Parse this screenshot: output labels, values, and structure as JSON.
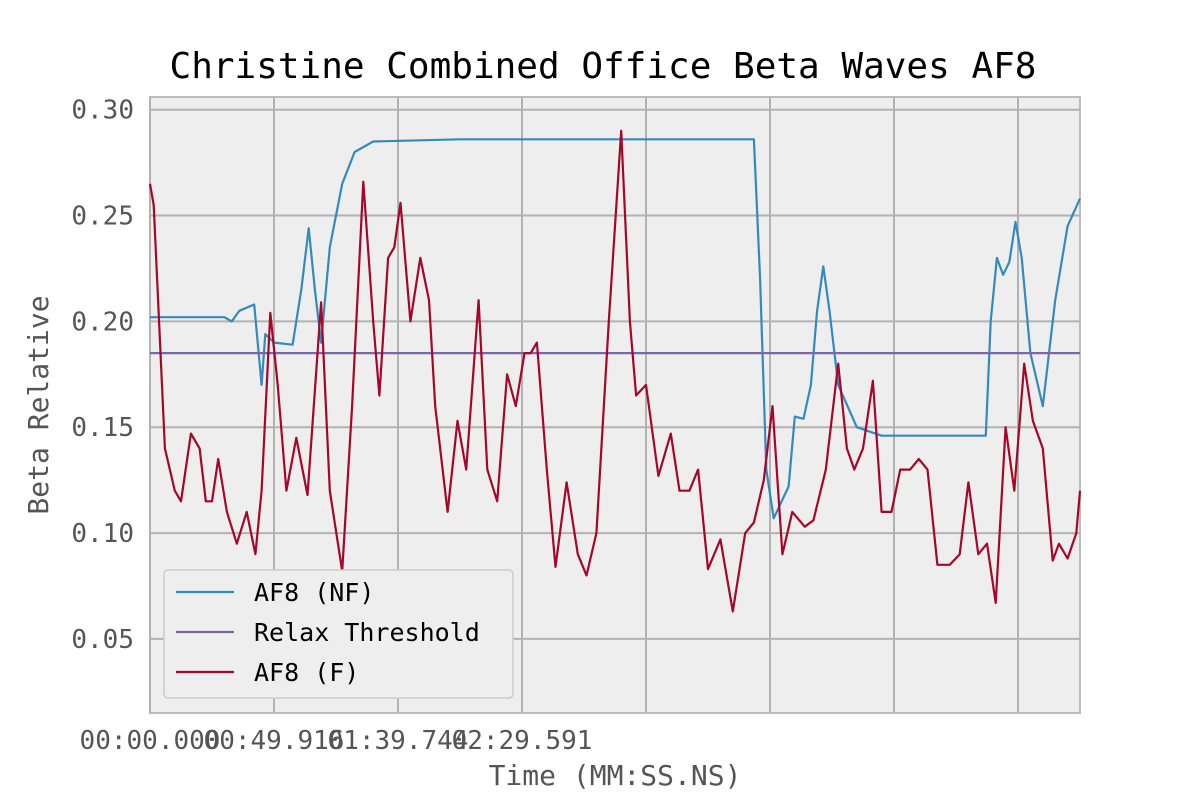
{
  "chart_data": {
    "type": "line",
    "title": "Christine Combined Office Beta Waves AF8",
    "xlabel": "Time (MM:SS.NS)",
    "ylabel": "Beta Relative",
    "xlim": [
      0,
      7.5
    ],
    "ylim": [
      0.015,
      0.306
    ],
    "yticks": [
      0.05,
      0.1,
      0.15,
      0.2,
      0.25,
      0.3
    ],
    "ytick_labels": [
      "0.05",
      "0.10",
      "0.15",
      "0.20",
      "0.25",
      "0.30"
    ],
    "xtick_labels": [
      "00:00.000",
      "00:49.916",
      "01:39.744",
      "02:29.591"
    ],
    "xtick_positions": [
      0,
      1,
      2,
      3
    ],
    "grid_x": [
      0,
      1,
      2,
      3,
      4,
      5,
      6,
      7
    ],
    "grid": true,
    "legend_position": "lower-left",
    "background": "#eeeeee",
    "series": [
      {
        "name": "AF8 (NF)",
        "color": "#348abd",
        "points": [
          [
            0,
            0.202
          ],
          [
            0.6,
            0.202
          ],
          [
            0.66,
            0.2
          ],
          [
            0.72,
            0.205
          ],
          [
            0.84,
            0.208
          ],
          [
            0.9,
            0.17
          ],
          [
            0.93,
            0.194
          ],
          [
            1.0,
            0.19
          ],
          [
            1.15,
            0.189
          ],
          [
            1.22,
            0.215
          ],
          [
            1.28,
            0.244
          ],
          [
            1.33,
            0.215
          ],
          [
            1.38,
            0.19
          ],
          [
            1.45,
            0.235
          ],
          [
            1.55,
            0.265
          ],
          [
            1.65,
            0.28
          ],
          [
            1.8,
            0.285
          ],
          [
            2.5,
            0.286
          ],
          [
            4.0,
            0.286
          ],
          [
            4.87,
            0.286
          ],
          [
            4.92,
            0.22
          ],
          [
            4.97,
            0.13
          ],
          [
            5.03,
            0.107
          ],
          [
            5.15,
            0.122
          ],
          [
            5.2,
            0.155
          ],
          [
            5.27,
            0.154
          ],
          [
            5.33,
            0.17
          ],
          [
            5.38,
            0.205
          ],
          [
            5.43,
            0.226
          ],
          [
            5.48,
            0.205
          ],
          [
            5.55,
            0.17
          ],
          [
            5.7,
            0.15
          ],
          [
            5.9,
            0.146
          ],
          [
            6.3,
            0.146
          ],
          [
            6.74,
            0.146
          ],
          [
            6.78,
            0.2
          ],
          [
            6.83,
            0.23
          ],
          [
            6.88,
            0.222
          ],
          [
            6.93,
            0.228
          ],
          [
            6.98,
            0.247
          ],
          [
            7.03,
            0.23
          ],
          [
            7.1,
            0.185
          ],
          [
            7.2,
            0.16
          ],
          [
            7.3,
            0.21
          ],
          [
            7.4,
            0.245
          ],
          [
            7.5,
            0.258
          ]
        ]
      },
      {
        "name": "Relax Threshold",
        "color": "#7a68a6",
        "points": [
          [
            0,
            0.185
          ],
          [
            7.5,
            0.185
          ]
        ]
      },
      {
        "name": "AF8 (F)",
        "color": "#a60628",
        "points": [
          [
            0,
            0.265
          ],
          [
            0.03,
            0.255
          ],
          [
            0.12,
            0.14
          ],
          [
            0.2,
            0.12
          ],
          [
            0.25,
            0.115
          ],
          [
            0.33,
            0.147
          ],
          [
            0.4,
            0.14
          ],
          [
            0.45,
            0.115
          ],
          [
            0.5,
            0.115
          ],
          [
            0.55,
            0.135
          ],
          [
            0.62,
            0.11
          ],
          [
            0.7,
            0.095
          ],
          [
            0.78,
            0.11
          ],
          [
            0.85,
            0.09
          ],
          [
            0.9,
            0.12
          ],
          [
            0.97,
            0.204
          ],
          [
            1.03,
            0.17
          ],
          [
            1.1,
            0.12
          ],
          [
            1.18,
            0.145
          ],
          [
            1.27,
            0.118
          ],
          [
            1.38,
            0.209
          ],
          [
            1.45,
            0.12
          ],
          [
            1.55,
            0.082
          ],
          [
            1.63,
            0.16
          ],
          [
            1.72,
            0.266
          ],
          [
            1.8,
            0.2
          ],
          [
            1.85,
            0.165
          ],
          [
            1.92,
            0.23
          ],
          [
            1.97,
            0.235
          ],
          [
            2.02,
            0.256
          ],
          [
            2.1,
            0.2
          ],
          [
            2.18,
            0.23
          ],
          [
            2.25,
            0.21
          ],
          [
            2.3,
            0.16
          ],
          [
            2.4,
            0.11
          ],
          [
            2.48,
            0.153
          ],
          [
            2.55,
            0.13
          ],
          [
            2.65,
            0.21
          ],
          [
            2.72,
            0.13
          ],
          [
            2.8,
            0.115
          ],
          [
            2.88,
            0.175
          ],
          [
            2.95,
            0.16
          ],
          [
            3.02,
            0.185
          ],
          [
            3.07,
            0.185
          ],
          [
            3.12,
            0.19
          ],
          [
            3.2,
            0.13
          ],
          [
            3.27,
            0.084
          ],
          [
            3.36,
            0.124
          ],
          [
            3.45,
            0.09
          ],
          [
            3.52,
            0.08
          ],
          [
            3.6,
            0.1
          ],
          [
            3.7,
            0.2
          ],
          [
            3.8,
            0.29
          ],
          [
            3.87,
            0.2
          ],
          [
            3.92,
            0.165
          ],
          [
            4.0,
            0.17
          ],
          [
            4.1,
            0.127
          ],
          [
            4.2,
            0.147
          ],
          [
            4.27,
            0.12
          ],
          [
            4.35,
            0.12
          ],
          [
            4.42,
            0.13
          ],
          [
            4.5,
            0.083
          ],
          [
            4.6,
            0.097
          ],
          [
            4.7,
            0.063
          ],
          [
            4.8,
            0.1
          ],
          [
            4.87,
            0.105
          ],
          [
            4.95,
            0.125
          ],
          [
            5.02,
            0.16
          ],
          [
            5.1,
            0.09
          ],
          [
            5.18,
            0.11
          ],
          [
            5.28,
            0.103
          ],
          [
            5.35,
            0.106
          ],
          [
            5.45,
            0.13
          ],
          [
            5.55,
            0.18
          ],
          [
            5.62,
            0.14
          ],
          [
            5.68,
            0.13
          ],
          [
            5.75,
            0.14
          ],
          [
            5.83,
            0.172
          ],
          [
            5.9,
            0.11
          ],
          [
            5.98,
            0.11
          ],
          [
            6.05,
            0.13
          ],
          [
            6.13,
            0.13
          ],
          [
            6.2,
            0.135
          ],
          [
            6.27,
            0.13
          ],
          [
            6.35,
            0.085
          ],
          [
            6.45,
            0.085
          ],
          [
            6.53,
            0.09
          ],
          [
            6.6,
            0.124
          ],
          [
            6.68,
            0.09
          ],
          [
            6.75,
            0.095
          ],
          [
            6.82,
            0.067
          ],
          [
            6.9,
            0.15
          ],
          [
            6.97,
            0.12
          ],
          [
            7.05,
            0.18
          ],
          [
            7.12,
            0.153
          ],
          [
            7.2,
            0.14
          ],
          [
            7.28,
            0.087
          ],
          [
            7.33,
            0.095
          ],
          [
            7.4,
            0.088
          ],
          [
            7.47,
            0.1
          ],
          [
            7.5,
            0.12
          ]
        ]
      }
    ]
  }
}
